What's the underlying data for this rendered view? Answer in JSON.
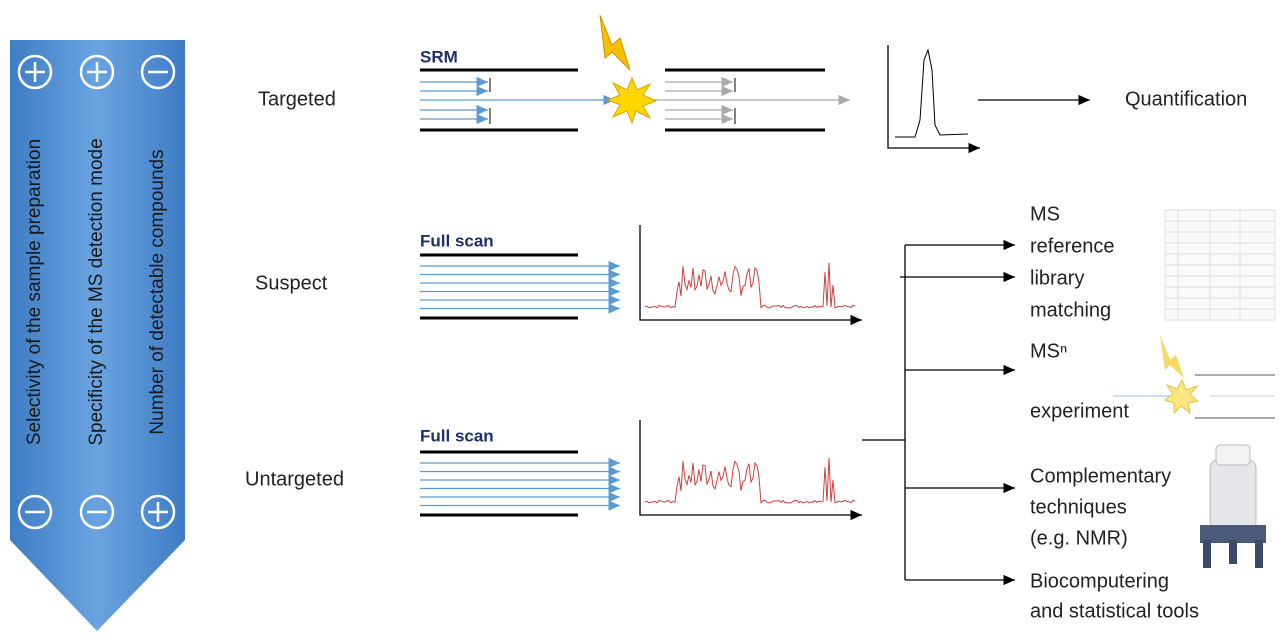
{
  "arrow": {
    "labels": [
      "Selectivity of the sample preparation",
      "Specificity of the MS detection mode",
      "Number of detectable compounds"
    ]
  },
  "rows": [
    {
      "label": "Targeted",
      "mode": "SRM"
    },
    {
      "label": "Suspect",
      "mode": "Full scan"
    },
    {
      "label": "Untargeted",
      "mode": "Full scan"
    }
  ],
  "quantification": "Quantification",
  "outputs": [
    {
      "lines": [
        "MS",
        "reference",
        "library",
        "matching"
      ]
    },
    {
      "lines": [
        "MSⁿ",
        "experiment"
      ]
    },
    {
      "lines": [
        "Complementary",
        "techniques",
        "(e.g. NMR)"
      ]
    },
    {
      "lines": [
        "Biocomputering",
        "and statistical tools"
      ]
    }
  ]
}
